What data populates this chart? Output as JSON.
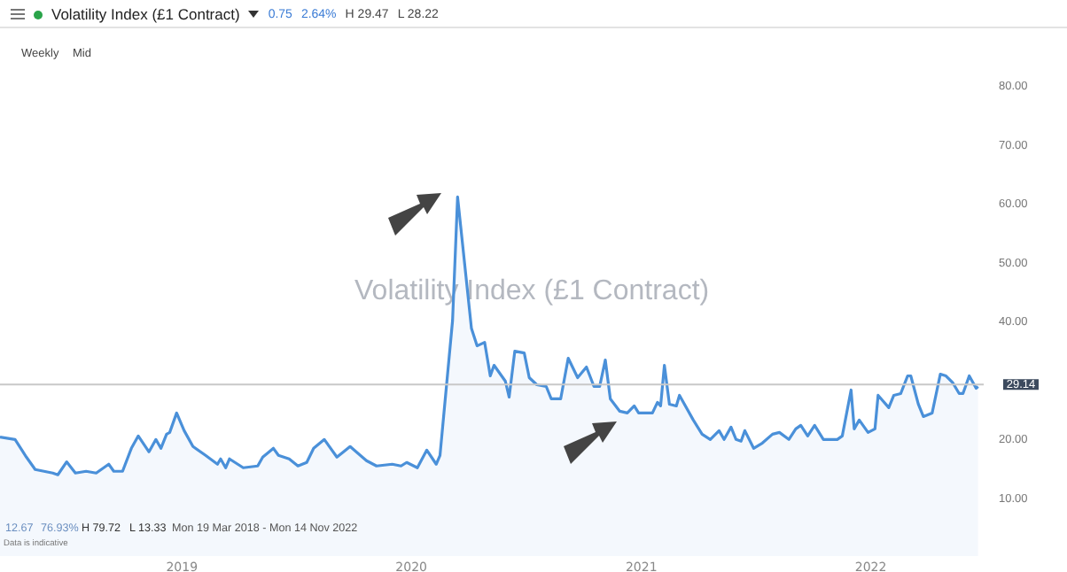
{
  "chart_data": {
    "type": "area",
    "title": "Volatility Index (£1 Contract)",
    "annotations": [
      "0.75",
      "2.64%",
      "H 29.47",
      "L 28.22",
      "Weekly",
      "Mid",
      "Volatility Index (£1 Contract)",
      "12.67",
      "76.93%",
      "H 79.72",
      "L 13.33",
      "Mon 19 Mar 2018 - Mon 14 Nov 2022",
      "Data is indicative"
    ],
    "x": [
      "2018-03-19",
      "2018-04-12",
      "2018-04-30",
      "2018-05-14",
      "2018-06-11",
      "2018-06-19",
      "2018-07-03",
      "2018-07-17",
      "2018-08-03",
      "2018-08-19",
      "2018-09-08",
      "2018-09-16",
      "2018-09-30",
      "2018-10-14",
      "2018-10-25",
      "2018-11-11",
      "2018-11-22",
      "2018-11-30",
      "2018-12-09",
      "2018-12-14",
      "2018-12-25",
      "2019-01-06",
      "2019-01-20",
      "2019-02-09",
      "2019-02-28",
      "2019-03-05",
      "2019-03-13",
      "2019-03-19",
      "2019-04-10",
      "2019-05-03",
      "2019-05-11",
      "2019-05-28",
      "2019-06-05",
      "2019-06-22",
      "2019-07-06",
      "2019-07-20",
      "2019-07-31",
      "2019-08-17",
      "2019-09-06",
      "2019-09-27",
      "2019-10-23",
      "2019-11-08",
      "2019-12-03",
      "2019-12-17",
      "2019-12-26",
      "2020-01-12",
      "2020-01-27",
      "2020-02-11",
      "2020-02-17",
      "2020-03-08",
      "2020-03-16",
      "2020-04-07",
      "2020-04-16",
      "2020-04-28",
      "2020-05-07",
      "2020-05-13",
      "2020-05-31",
      "2020-06-06",
      "2020-06-15",
      "2020-06-30",
      "2020-07-08",
      "2020-07-20",
      "2020-08-04",
      "2020-08-12",
      "2020-08-27",
      "2020-09-08",
      "2020-09-23",
      "2020-10-07",
      "2020-10-19",
      "2020-10-28",
      "2020-11-06",
      "2020-11-14",
      "2020-11-29",
      "2020-12-11",
      "2020-12-22",
      "2020-12-29",
      "2021-01-20",
      "2021-01-28",
      "2021-02-02",
      "2021-02-08",
      "2021-02-16",
      "2021-02-27",
      "2021-03-04",
      "2021-03-26",
      "2021-04-09",
      "2021-04-22",
      "2021-05-06",
      "2021-05-14",
      "2021-05-25",
      "2021-06-02",
      "2021-06-10",
      "2021-06-16",
      "2021-06-30",
      "2021-07-14",
      "2021-07-30",
      "2021-08-10",
      "2021-08-25",
      "2021-09-05",
      "2021-09-13",
      "2021-09-24",
      "2021-10-05",
      "2021-10-19",
      "2021-11-10",
      "2021-11-18",
      "2021-12-02",
      "2021-12-07",
      "2021-12-15",
      "2021-12-29",
      "2022-01-09",
      "2022-01-14",
      "2022-01-31",
      "2022-02-08",
      "2022-02-19",
      "2022-03-02",
      "2022-03-07",
      "2022-03-19",
      "2022-03-27",
      "2022-04-10",
      "2022-04-23",
      "2022-05-02",
      "2022-05-13",
      "2022-05-23",
      "2022-05-29",
      "2022-06-08",
      "2022-06-19",
      "2022-06-22"
    ],
    "series": [
      {
        "color": "#4a90d9",
        "values": [
          20.2,
          19.8,
          16.8,
          14.7,
          14.1,
          13.8,
          16,
          14.1,
          14.4,
          14.1,
          15.6,
          14.4,
          14.4,
          18.3,
          20.4,
          17.7,
          19.8,
          18.3,
          20.7,
          21,
          24.3,
          21.3,
          18.6,
          17.1,
          15.6,
          16.5,
          15,
          16.5,
          15,
          15.3,
          16.8,
          18.3,
          17.1,
          16.5,
          15.3,
          15.9,
          18.3,
          19.8,
          16.8,
          18.6,
          16.2,
          15.3,
          15.6,
          15.3,
          15.9,
          15,
          18,
          15.6,
          17.1,
          40,
          61,
          38.7,
          35.7,
          36.3,
          30.6,
          32.4,
          29.7,
          27,
          34.8,
          34.5,
          30.3,
          29.1,
          28.8,
          26.7,
          26.7,
          33.6,
          30.3,
          32.1,
          28.8,
          28.8,
          33.3,
          26.7,
          24.6,
          24.3,
          25.5,
          24.3,
          24.3,
          26.1,
          25.5,
          32.4,
          25.8,
          25.5,
          27.3,
          23.1,
          20.7,
          19.8,
          21.3,
          19.8,
          21.9,
          19.8,
          19.5,
          21.3,
          18.3,
          19.2,
          20.7,
          21,
          19.8,
          21.6,
          22.2,
          20.4,
          22.2,
          19.8,
          19.8,
          20.4,
          28.2,
          21.6,
          23.1,
          21,
          21.6,
          27.3,
          25.2,
          27.3,
          27.6,
          30.6,
          30.6,
          25.8,
          23.7,
          24.3,
          30.9,
          30.6,
          29.4,
          27.6,
          27.6,
          30.6,
          28.5,
          28.8
        ]
      }
    ],
    "xlim": [
      "2018-03-19",
      "2022-07-01"
    ],
    "xticks": [
      "2019",
      "2020",
      "2021",
      "2022"
    ],
    "ylim": [
      0,
      80
    ],
    "yticks": [
      {
        "value": 10,
        "label": "10.00"
      },
      {
        "value": 20,
        "label": "20.00"
      },
      {
        "value": 40,
        "label": "40.00"
      },
      {
        "value": 50,
        "label": "50.00"
      },
      {
        "value": 60,
        "label": "60.00"
      },
      {
        "value": 70,
        "label": "70.00"
      },
      {
        "value": 80,
        "label": "80.00"
      }
    ],
    "ref_lines": [
      {
        "axis": "y",
        "value": 29.14,
        "label": "29.14",
        "color": "#c8c8c8"
      }
    ],
    "grid": false,
    "marker": "none",
    "line_style": "solid"
  }
}
